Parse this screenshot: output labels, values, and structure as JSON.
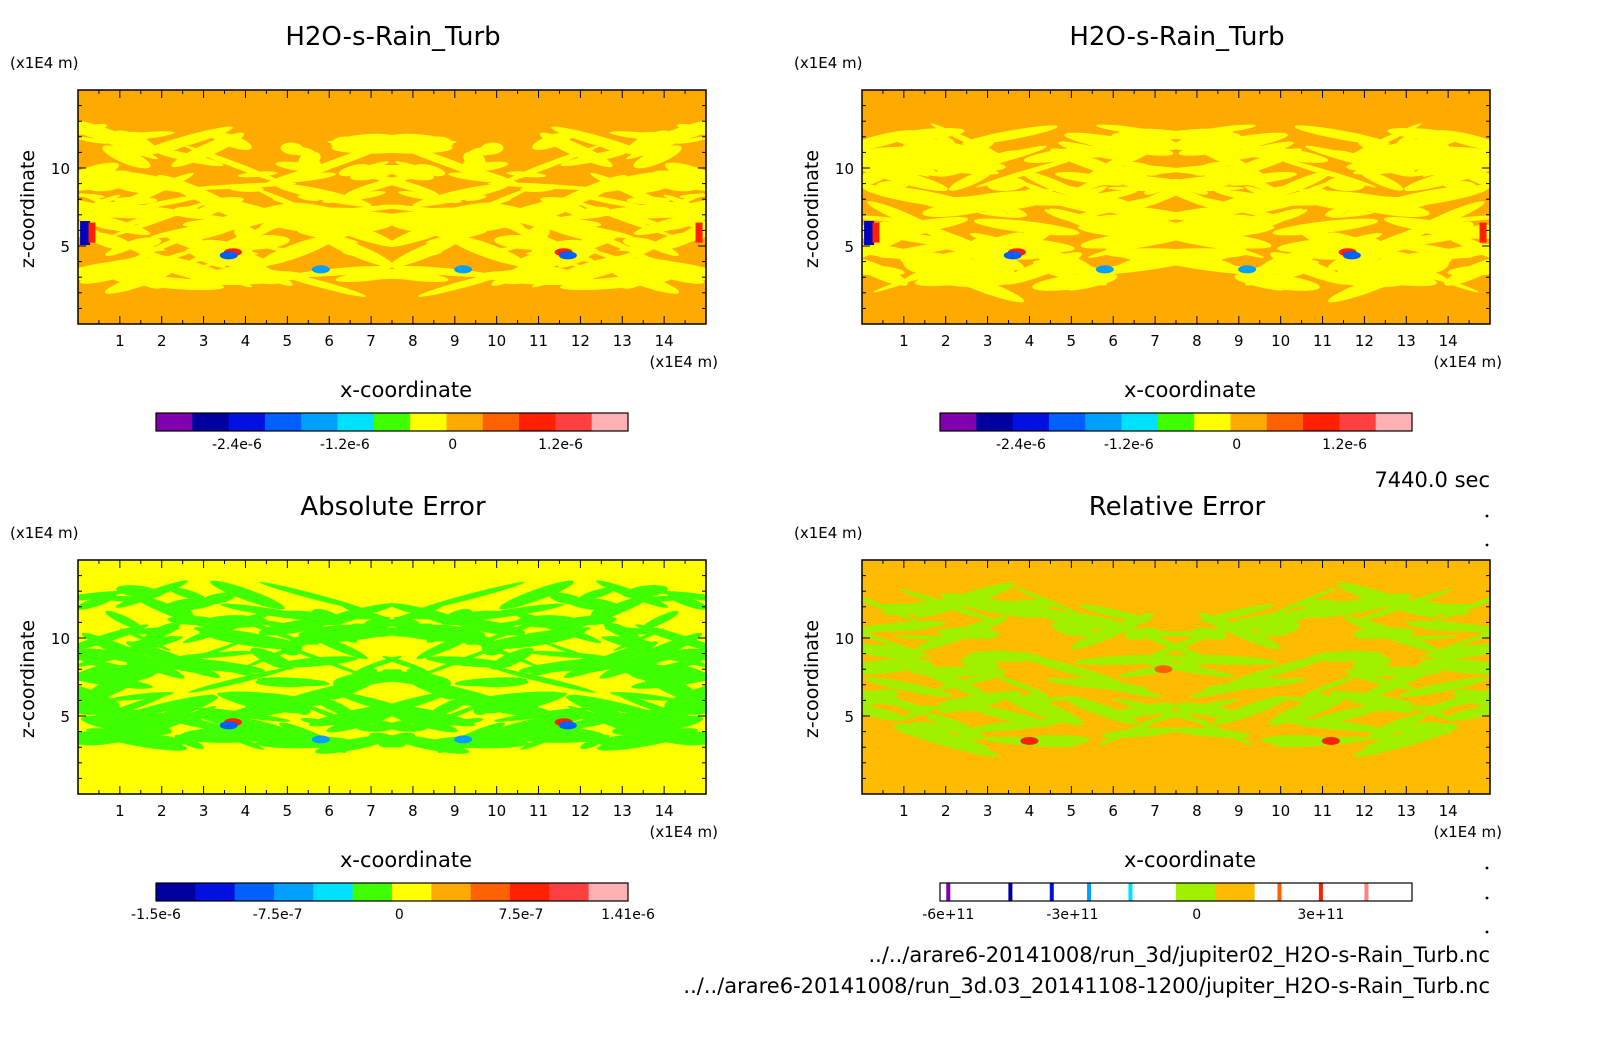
{
  "time_label": "7440.0 sec",
  "file_paths": [
    "../../arare6-20141008/run_3d/jupiter02_H2O-s-Rain_Turb.nc",
    "../../arare6-20141008/run_3d.03_20141108-1200/jupiter_H2O-s-Rain_Turb.nc"
  ],
  "chart_data": [
    {
      "type": "heatmap",
      "title": "H2O-s-Rain_Turb",
      "xlabel": "x-coordinate",
      "ylabel": "z-coordinate",
      "x_unit": "(x1E4 m)",
      "y_unit": "(x1E4 m)",
      "xlim": [
        0,
        15
      ],
      "ylim": [
        0,
        15
      ],
      "x_ticks": [
        1,
        2,
        3,
        4,
        5,
        6,
        7,
        8,
        9,
        10,
        11,
        12,
        13,
        14
      ],
      "y_ticks": [
        5,
        10
      ],
      "background_color": "#ffaa00",
      "pattern_color": "#ffff00",
      "colorbar": {
        "colors": [
          "#8000b0",
          "#0000a0",
          "#0010e0",
          "#0060ff",
          "#00a0ff",
          "#00e0ff",
          "#40ff00",
          "#ffff00",
          "#ffaa00",
          "#ff6000",
          "#ff2000",
          "#ff4040",
          "#ffb0b0"
        ],
        "tick_labels": [
          "-2.4e-6",
          "-1.2e-6",
          "0",
          "1.2e-6"
        ],
        "tick_positions": [
          -2.4e-06,
          -1.2e-06,
          0,
          1.2e-06
        ],
        "range": [
          -3.3e-06,
          1.95e-06
        ],
        "segments": "uniform"
      }
    },
    {
      "type": "heatmap",
      "title": "H2O-s-Rain_Turb",
      "xlabel": "x-coordinate",
      "ylabel": "z-coordinate",
      "x_unit": "(x1E4 m)",
      "y_unit": "(x1E4 m)",
      "xlim": [
        0,
        15
      ],
      "ylim": [
        0,
        15
      ],
      "x_ticks": [
        1,
        2,
        3,
        4,
        5,
        6,
        7,
        8,
        9,
        10,
        11,
        12,
        13,
        14
      ],
      "y_ticks": [
        5,
        10
      ],
      "background_color": "#ffaa00",
      "pattern_color": "#ffff00",
      "colorbar": {
        "colors": [
          "#8000b0",
          "#0000a0",
          "#0010e0",
          "#0060ff",
          "#00a0ff",
          "#00e0ff",
          "#40ff00",
          "#ffff00",
          "#ffaa00",
          "#ff6000",
          "#ff2000",
          "#ff4040",
          "#ffb0b0"
        ],
        "tick_labels": [
          "-2.4e-6",
          "-1.2e-6",
          "0",
          "1.2e-6"
        ],
        "tick_positions": [
          -2.4e-06,
          -1.2e-06,
          0,
          1.2e-06
        ],
        "range": [
          -3.3e-06,
          1.95e-06
        ],
        "segments": "uniform"
      }
    },
    {
      "type": "heatmap",
      "title": "Absolute Error",
      "xlabel": "x-coordinate",
      "ylabel": "z-coordinate",
      "x_unit": "(x1E4 m)",
      "y_unit": "(x1E4 m)",
      "xlim": [
        0,
        15
      ],
      "ylim": [
        0,
        15
      ],
      "x_ticks": [
        1,
        2,
        3,
        4,
        5,
        6,
        7,
        8,
        9,
        10,
        11,
        12,
        13,
        14
      ],
      "y_ticks": [
        5,
        10
      ],
      "background_color": "#ffff00",
      "pattern_color": "#40ff00",
      "colorbar": {
        "colors": [
          "#0000a0",
          "#0010e0",
          "#0060ff",
          "#00a0ff",
          "#00e0ff",
          "#40ff00",
          "#ffff00",
          "#ffaa00",
          "#ff6000",
          "#ff2000",
          "#ff4040",
          "#ffb0b0"
        ],
        "tick_labels": [
          "-1.5e-6",
          "-7.5e-7",
          "0",
          "7.5e-7",
          "1.41e-6"
        ],
        "tick_positions": [
          -1.5e-06,
          -7.5e-07,
          0,
          7.5e-07,
          1.41e-06
        ],
        "range": [
          -1.5e-06,
          1.41e-06
        ],
        "segments": "uniform"
      }
    },
    {
      "type": "heatmap",
      "title": "Relative Error",
      "xlabel": "x-coordinate",
      "ylabel": "z-coordinate",
      "x_unit": "(x1E4 m)",
      "y_unit": "(x1E4 m)",
      "xlim": [
        0,
        15
      ],
      "ylim": [
        0,
        15
      ],
      "x_ticks": [
        1,
        2,
        3,
        4,
        5,
        6,
        7,
        8,
        9,
        10,
        11,
        12,
        13,
        14
      ],
      "y_ticks": [
        5,
        10
      ],
      "background_color": "#ffbb00",
      "pattern_color": "#a0f000",
      "colorbar": {
        "colors": [
          "#ffffff",
          "#ffffff",
          "#ffffff",
          "#ffffff",
          "#ffffff",
          "#ffffff",
          "#a0f000",
          "#ffbb00",
          "#ffffff",
          "#ffffff",
          "#ffffff",
          "#ffffff"
        ],
        "lines": [
          {
            "value": -600000000000.0,
            "color": "#8000b0"
          },
          {
            "value": -450000000000.0,
            "color": "#0000a0"
          },
          {
            "value": -350000000000.0,
            "color": "#0010e0"
          },
          {
            "value": -260000000000.0,
            "color": "#00a0ff"
          },
          {
            "value": -160000000000.0,
            "color": "#00e0ff"
          },
          {
            "value": 200000000000.0,
            "color": "#ff6000"
          },
          {
            "value": 300000000000.0,
            "color": "#ff2000"
          },
          {
            "value": 410000000000.0,
            "color": "#ff8080"
          }
        ],
        "tick_labels": [
          "-6e+11",
          "-3e+11",
          "0",
          "3e+11"
        ],
        "tick_positions": [
          -600000000000.0,
          -300000000000.0,
          0,
          300000000000.0
        ],
        "range": [
          -620000000000.0,
          520000000000.0
        ],
        "segments": "uniform"
      }
    }
  ]
}
